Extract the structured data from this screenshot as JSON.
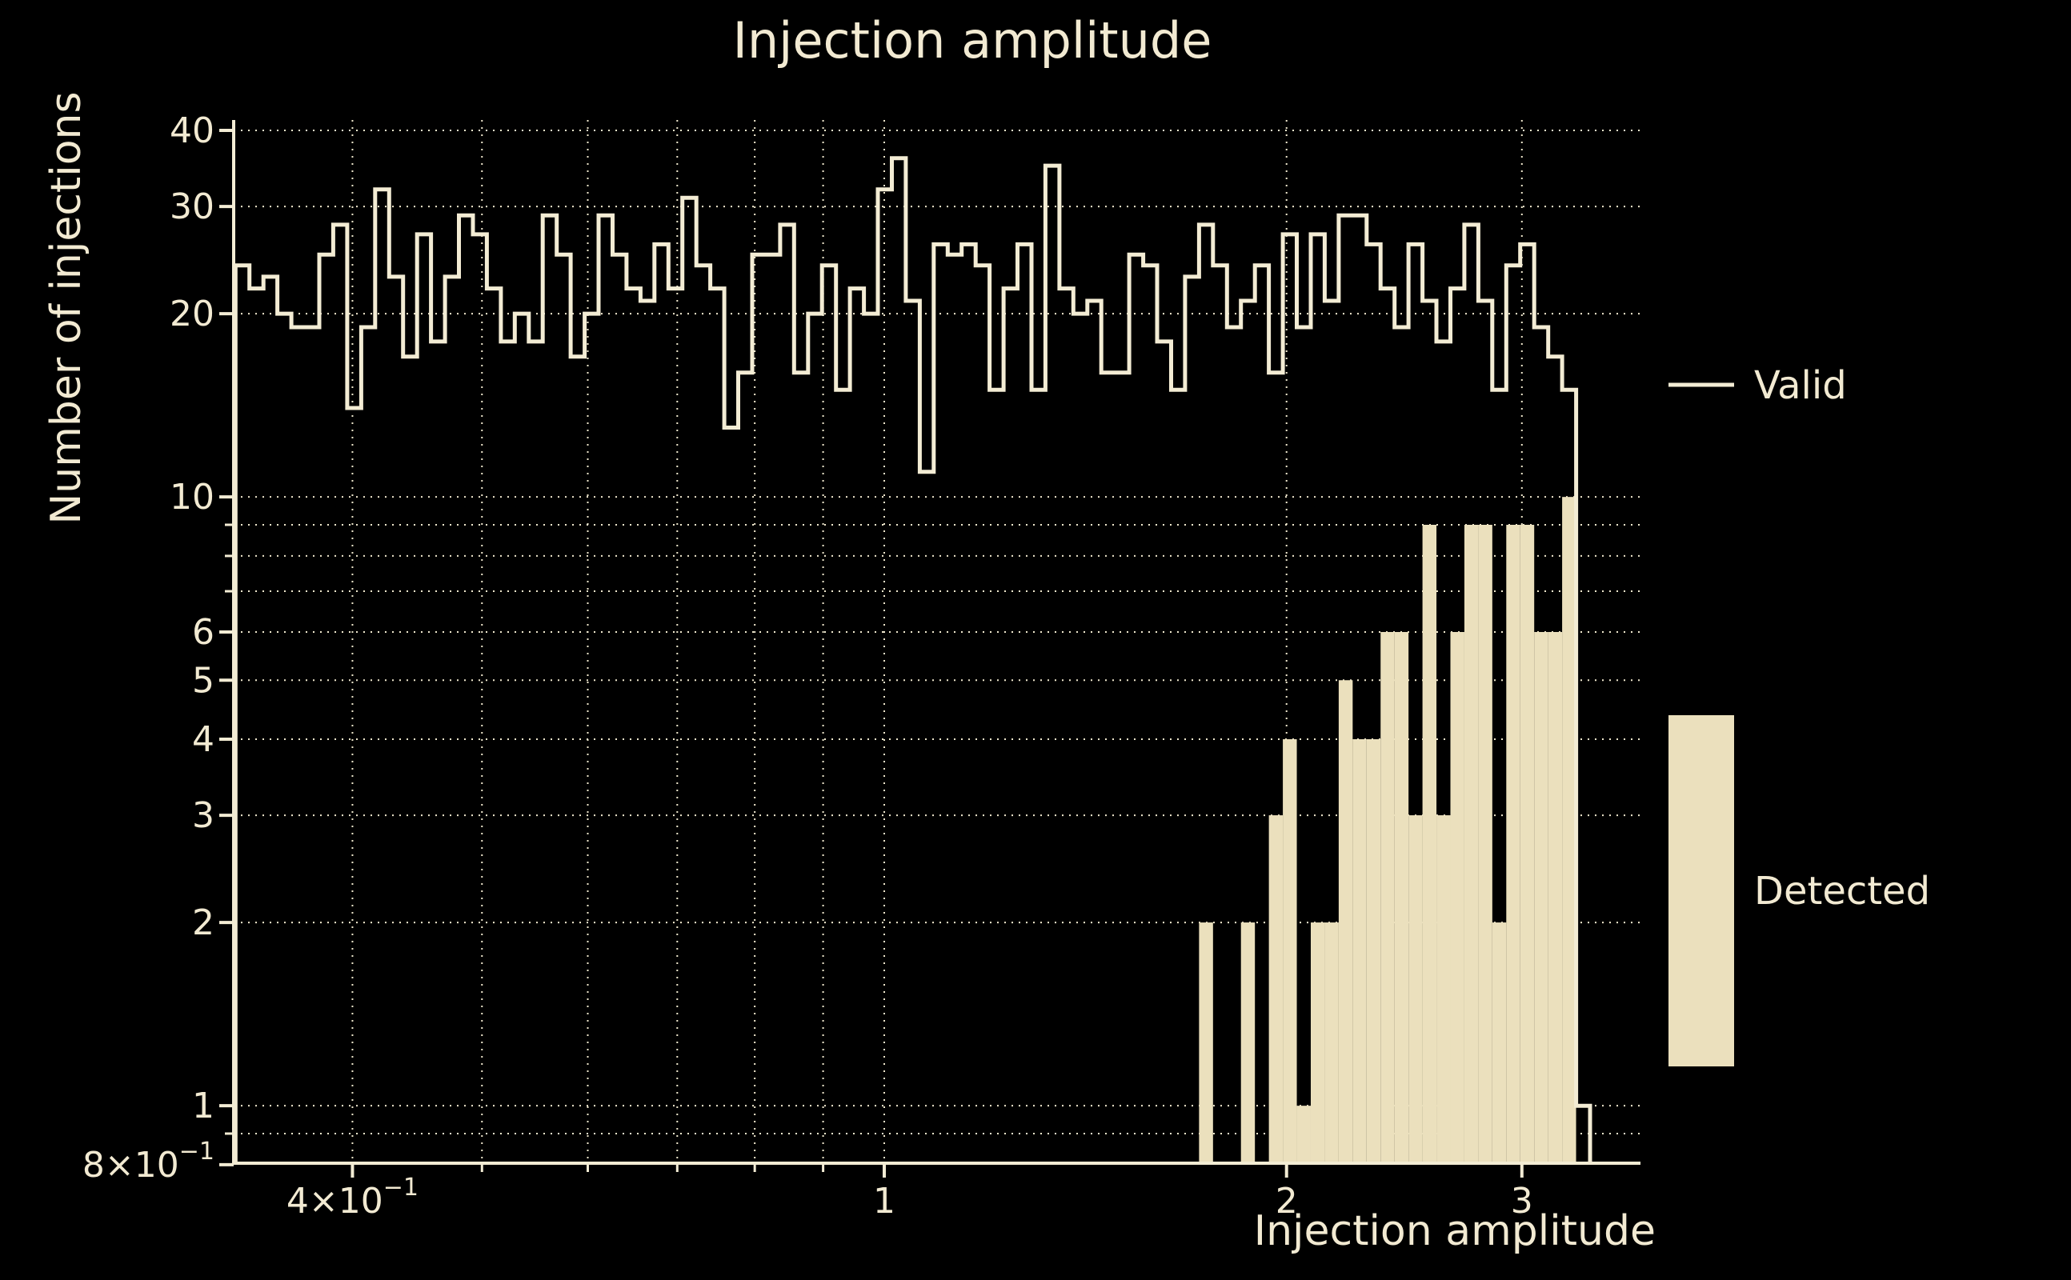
{
  "title": "Injection amplitude",
  "xlabel": "Injection amplitude",
  "ylabel": "Number of injections",
  "legend": {
    "valid": "Valid",
    "detected": "Detected"
  },
  "colors": {
    "background": "#000000",
    "line": "#f3ecd4",
    "fill": "#ebe0bd",
    "text": "#f2ead2",
    "grid": "#efe7cd"
  },
  "chart_data": {
    "type": "bar",
    "subtype": "overlaid-histograms",
    "x_scale": "log",
    "y_scale": "log",
    "xlim": [
      0.326,
      3.63
    ],
    "ylim": [
      0.8,
      42
    ],
    "grid": "on",
    "legend_position": "right-outside",
    "bin_edges": {
      "min": 0.327,
      "max": 3.374,
      "count": 97,
      "spacing": "log"
    },
    "series": [
      {
        "name": "Valid",
        "style": "step-outline",
        "values": [
          24,
          22,
          23,
          20,
          19,
          19,
          25,
          28,
          14,
          19,
          32,
          23,
          17,
          27,
          18,
          23,
          29,
          27,
          22,
          18,
          20,
          18,
          29,
          25,
          17,
          20,
          29,
          25,
          22,
          21,
          26,
          22,
          31,
          24,
          22,
          13,
          16,
          25,
          25,
          28,
          16,
          20,
          24,
          15,
          22,
          20,
          32,
          36,
          21,
          11,
          26,
          25,
          26,
          24,
          15,
          22,
          26,
          15,
          35,
          22,
          20,
          21,
          16,
          16,
          25,
          24,
          18,
          15,
          23,
          28,
          24,
          19,
          21,
          24,
          16,
          27,
          19,
          27,
          21,
          29,
          29,
          26,
          22,
          19,
          26,
          21,
          18,
          22,
          28,
          21,
          15,
          24,
          26,
          19,
          17,
          15,
          1
        ]
      },
      {
        "name": "Detected",
        "style": "filled-bar",
        "values": [
          0,
          0,
          0,
          0,
          0,
          0,
          0,
          0,
          0,
          0,
          0,
          0,
          0,
          0,
          0,
          0,
          0,
          0,
          0,
          0,
          0,
          0,
          0,
          0,
          0,
          0,
          0,
          0,
          0,
          0,
          0,
          0,
          0,
          0,
          0,
          0,
          0,
          0,
          0,
          0,
          0,
          0,
          0,
          0,
          0,
          0,
          0,
          0,
          0,
          0,
          0,
          0,
          0,
          0,
          0,
          0,
          0,
          0,
          0,
          0,
          0,
          0,
          0,
          0,
          0,
          0,
          0,
          0,
          0,
          2,
          0,
          0,
          2,
          0,
          3,
          4,
          1,
          2,
          2,
          5,
          4,
          4,
          6,
          6,
          3,
          9,
          3,
          6,
          9,
          9,
          2,
          9,
          9,
          6,
          6,
          10,
          0
        ]
      }
    ],
    "x_tick_labels": [
      {
        "v": 0.4,
        "main": "4×10",
        "sup": "−1"
      },
      {
        "v": 1,
        "main": "1"
      },
      {
        "v": 2,
        "main": "2"
      },
      {
        "v": 3,
        "main": "3"
      }
    ],
    "x_minor_ticks": [
      0.5,
      0.6,
      0.7,
      0.8,
      0.9
    ],
    "y_tick_labels": [
      {
        "v": 40,
        "main": "40"
      },
      {
        "v": 30,
        "main": "30"
      },
      {
        "v": 20,
        "main": "20"
      },
      {
        "v": 10,
        "main": "10"
      },
      {
        "v": 6,
        "main": "6"
      },
      {
        "v": 5,
        "main": "5"
      },
      {
        "v": 4,
        "main": "4"
      },
      {
        "v": 3,
        "main": "3"
      },
      {
        "v": 2,
        "main": "2"
      },
      {
        "v": 1,
        "main": "1"
      },
      {
        "v": 0.8,
        "main": "8×10",
        "sup": "−1"
      }
    ],
    "y_minor_ticks": [
      9,
      8,
      7,
      0.9
    ],
    "gridlines_x": [
      0.4,
      0.5,
      0.6,
      0.7,
      0.8,
      0.9,
      1,
      2,
      3
    ],
    "gridlines_y": [
      40,
      30,
      20,
      10,
      9,
      8,
      7,
      6,
      5,
      4,
      3,
      2,
      1,
      0.9
    ]
  }
}
